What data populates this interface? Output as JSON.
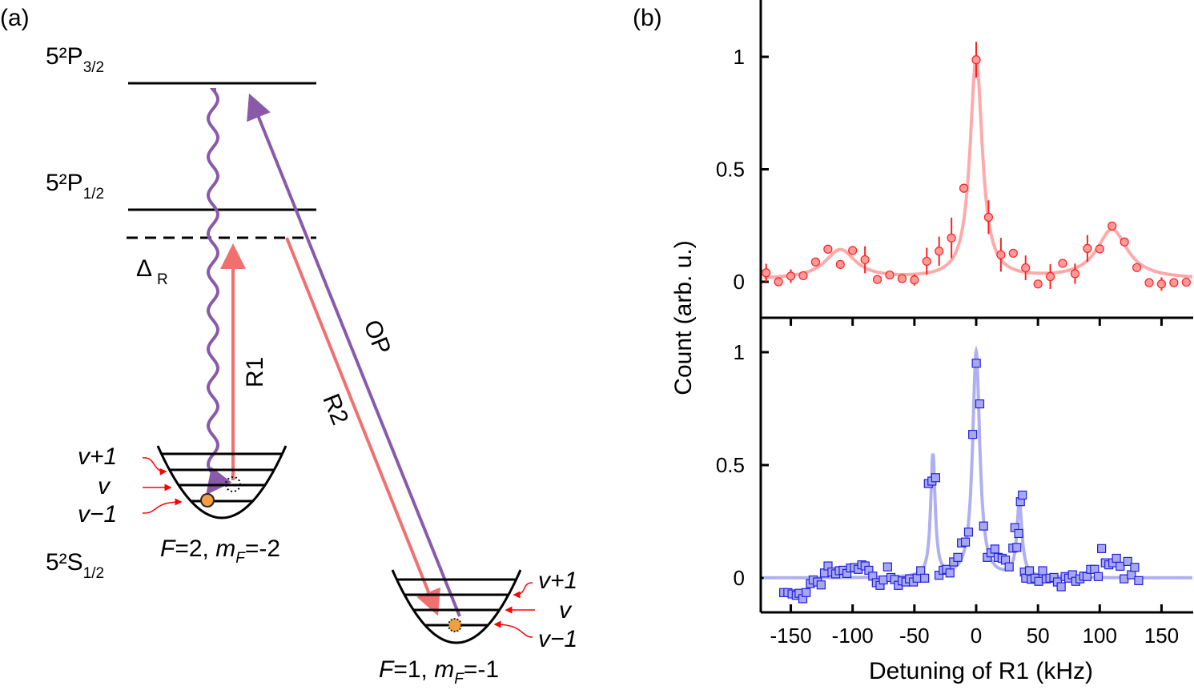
{
  "panel_a": {
    "label": "(a)",
    "levels": {
      "p32": {
        "main": "5²P",
        "sub": "3/2"
      },
      "p12": {
        "main": "5²P",
        "sub": "1/2"
      },
      "s12": {
        "main": "5²S",
        "sub": "1/2"
      },
      "detuning": {
        "main": "Δ",
        "sub": "R"
      }
    },
    "beams": {
      "r1": "R1",
      "r2": "R2",
      "op": "OP"
    },
    "left_well": {
      "vib_labels": [
        "v+1",
        "v",
        "v−1"
      ],
      "state": {
        "F": "F",
        "F_val": "=2, ",
        "m": "m",
        "m_sub": "F",
        "m_val": "=-2"
      }
    },
    "right_well": {
      "vib_labels": [
        "v+1",
        "v",
        "v−1"
      ],
      "state": {
        "F": "F",
        "F_val": "=1, ",
        "m": "m",
        "m_sub": "F",
        "m_val": "=-1"
      }
    },
    "colors": {
      "raman": "#f07070",
      "op": "#8a5aaa",
      "atom": "#f0a040",
      "pointer": "#ff0000"
    }
  },
  "panel_b": {
    "label": "(b)"
  },
  "chart_data": {
    "type": "scatter",
    "xlabel": "Detuning of R1 (kHz)",
    "ylabel": "Count (arb. u.)",
    "xlim": [
      -170,
      175
    ],
    "xticks": [
      -150,
      -100,
      -50,
      0,
      50,
      100,
      150
    ],
    "grid": false,
    "panels": [
      {
        "marker": "circle",
        "color": "#ff9a9a",
        "edge_color": "#ff2020",
        "fit_color": "#ffaaaa",
        "ylim": [
          -0.12,
          1.25
        ],
        "yticks": [
          0,
          0.5,
          1
        ],
        "ytick_labels": [
          "0",
          "0.5",
          "1"
        ],
        "x": [
          -170,
          -160,
          -150,
          -140,
          -130,
          -120,
          -110,
          -100,
          -90,
          -80,
          -70,
          -60,
          -50,
          -40,
          -30,
          -20,
          -10,
          0,
          10,
          20,
          30,
          40,
          50,
          60,
          70,
          80,
          90,
          100,
          110,
          120,
          130,
          140,
          150,
          160,
          170
        ],
        "y": [
          0.04,
          0.0,
          0.025,
          0.027,
          0.088,
          0.145,
          0.077,
          0.139,
          0.098,
          0.01,
          0.03,
          0.014,
          0.008,
          0.091,
          0.136,
          0.195,
          0.416,
          0.987,
          0.287,
          0.12,
          0.127,
          0.062,
          -0.01,
          0.023,
          0.082,
          0.036,
          0.148,
          0.146,
          0.248,
          0.177,
          0.063,
          -0.004,
          -0.01,
          -0.004,
          -0.002
        ],
        "yerr": [
          0.04,
          0.0,
          0.03,
          0.0,
          0.0,
          0.015,
          0.0,
          0.02,
          0.06,
          0.0,
          0.0,
          0.0,
          0.025,
          0.06,
          0.065,
          0.09,
          0.02,
          0.08,
          0.075,
          0.075,
          0.0,
          0.055,
          0.0,
          0.055,
          0.0,
          0.045,
          0.06,
          0.02,
          0.015,
          0.0,
          0.0,
          0.0,
          0.03,
          0.0,
          0.0
        ],
        "fit": {
          "baseline": 0.01,
          "peaks": [
            {
              "center": 0,
              "amplitude": 0.98,
              "hwhm": 6
            },
            {
              "center": -110,
              "amplitude": 0.13,
              "hwhm": 15
            },
            {
              "center": 110,
              "amplitude": 0.22,
              "hwhm": 15
            }
          ]
        }
      },
      {
        "marker": "square",
        "color": "#a8a8f0",
        "edge_color": "#2020e0",
        "fit_color": "#b0b0f0",
        "ylim": [
          -0.15,
          1.1
        ],
        "yticks": [
          0,
          0.5,
          1
        ],
        "ytick_labels": [
          "0",
          "0.5",
          "1"
        ],
        "x": [
          -155.8,
          -152.4,
          -149.0,
          -145.6,
          -143.3,
          -140.3,
          -137.6,
          -134.2,
          -131.9,
          -128.5,
          -125.5,
          -122.8,
          -119.9,
          -116.7,
          -113.7,
          -110.8,
          -107.6,
          -104.6,
          -101.7,
          -98.5,
          -95.5,
          -92.6,
          -89.9,
          -86.9,
          -83.7,
          -80.8,
          -77.8,
          -75.1,
          -71.7,
          -69.0,
          -66.0,
          -63.0,
          -59.9,
          -56.9,
          -54.0,
          -50.8,
          -47.8,
          -44.9,
          -41.7,
          -38.7,
          -35.8,
          -32.8,
          -30.1,
          -26.7,
          -24.0,
          -21.2,
          -18.3,
          -14.9,
          -11.9,
          -8.7,
          -6.2,
          -2.8,
          0.1,
          2.9,
          6.0,
          9.0,
          12.0,
          15.1,
          17.8,
          21.0,
          23.7,
          26.7,
          29.7,
          31.3,
          32.9,
          34.4,
          35.8,
          37.4,
          39.0,
          40.1,
          43.1,
          44.6,
          47.6,
          50.6,
          53.8,
          56.7,
          59.7,
          62.9,
          65.8,
          68.8,
          72.0,
          74.9,
          77.9,
          80.6,
          84.0,
          87.0,
          89.7,
          92.6,
          95.8,
          98.8,
          101.5,
          104.5,
          107.4,
          110.6,
          113.5,
          116.5,
          119.7,
          122.6,
          125.6,
          128.3,
          131.5
        ],
        "y": [
          -0.065,
          -0.065,
          -0.071,
          -0.077,
          -0.068,
          -0.092,
          -0.065,
          -0.025,
          -0.009,
          -0.018,
          -0.031,
          0.022,
          0.053,
          0.026,
          0.018,
          0.032,
          0.034,
          0.02,
          0.044,
          0.046,
          0.038,
          0.058,
          0.053,
          0.034,
          0.008,
          -0.021,
          -0.033,
          -0.009,
          0.049,
          0.002,
          -0.007,
          -0.033,
          -0.013,
          -0.018,
          -0.004,
          -0.018,
          -0.001,
          0.032,
          -0.001,
          0.418,
          0.429,
          0.444,
          0.012,
          0.034,
          0.038,
          0.022,
          0.071,
          0.091,
          0.155,
          0.159,
          0.203,
          0.636,
          0.951,
          0.771,
          0.23,
          0.091,
          0.111,
          0.128,
          0.091,
          0.087,
          0.079,
          0.049,
          0.132,
          0.223,
          0.135,
          0.197,
          0.338,
          0.367,
          0.026,
          -0.001,
          0.032,
          -0.006,
          -0.001,
          -0.015,
          0.032,
          -0.004,
          -0.001,
          0.002,
          -0.018,
          -0.039,
          0.006,
          -0.001,
          0.014,
          -0.015,
          -0.004,
          0.008,
          0.006,
          0.038,
          0.038,
          0.006,
          0.13,
          0.067,
          0.058,
          0.067,
          0.087,
          0.052,
          -0.004,
          0.073,
          0.014,
          0.047,
          -0.012
        ],
        "fit": {
          "baseline": 0.0,
          "peaks": [
            {
              "center": 0,
              "amplitude": 1.0,
              "hwhm": 3.5
            },
            {
              "center": -35,
              "amplitude": 0.54,
              "hwhm": 2.2
            },
            {
              "center": 35,
              "amplitude": 0.33,
              "hwhm": 2.5
            }
          ]
        }
      }
    ]
  }
}
